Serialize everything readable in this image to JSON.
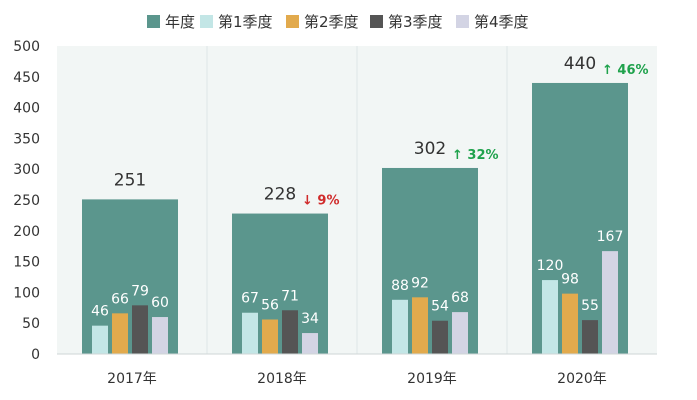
{
  "chart_data": {
    "type": "bar",
    "categories": [
      "2017年",
      "2018年",
      "2019年",
      "2020年"
    ],
    "ylim": [
      0,
      500
    ],
    "yticks": [
      0,
      50,
      100,
      150,
      200,
      250,
      300,
      350,
      400,
      450,
      500
    ],
    "legend_position": "top",
    "series": [
      {
        "name": "年度",
        "color": "#5b968d",
        "values": [
          251,
          228,
          302,
          440
        ]
      },
      {
        "name": "第1季度",
        "color": "#c3e6e6",
        "values": [
          46,
          67,
          88,
          120
        ]
      },
      {
        "name": "第2季度",
        "color": "#e2aa4d",
        "values": [
          66,
          56,
          92,
          98
        ]
      },
      {
        "name": "第3季度",
        "color": "#555555",
        "values": [
          79,
          71,
          54,
          55
        ]
      },
      {
        "name": "第4季度",
        "color": "#d3d4e4",
        "values": [
          60,
          34,
          68,
          167
        ]
      }
    ],
    "annual_changes": [
      null,
      {
        "text": "↓ 9%",
        "color": "#d02b2b"
      },
      {
        "text": "↑ 32%",
        "color": "#1fa24c"
      },
      {
        "text": "↑ 46%",
        "color": "#1fa24c"
      }
    ]
  }
}
